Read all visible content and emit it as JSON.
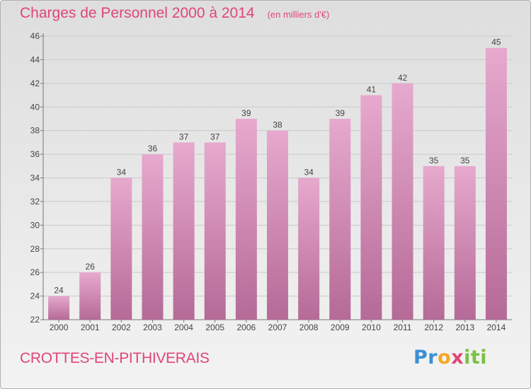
{
  "header": {
    "title": "Charges de Personnel 2000 à 2014",
    "subtitle": "(en milliers d'€)"
  },
  "footer": {
    "commune": "CROTTES-EN-PITHIVERAIS",
    "logo": {
      "letters": [
        "P",
        "r",
        "o",
        "x",
        "i",
        "t",
        "i"
      ],
      "colors": [
        "#3a8fd6",
        "#3a8fd6",
        "#f5a623",
        "#e0457a",
        "#7bc043",
        "#7bc043",
        "#7bc043"
      ]
    }
  },
  "colors": {
    "bar_top": "#e7a9ce",
    "bar_bottom": "#b56a97",
    "text": "#e0457a"
  },
  "chart_data": {
    "type": "bar",
    "categories": [
      "2000",
      "2001",
      "2002",
      "2003",
      "2004",
      "2005",
      "2006",
      "2007",
      "2008",
      "2009",
      "2010",
      "2011",
      "2012",
      "2013",
      "2014"
    ],
    "values": [
      24,
      26,
      34,
      36,
      37,
      37,
      39,
      38,
      34,
      39,
      41,
      42,
      35,
      35,
      45
    ],
    "ylim": [
      22,
      46
    ],
    "yticks": [
      22,
      24,
      26,
      28,
      30,
      32,
      34,
      36,
      38,
      40,
      42,
      44,
      46
    ],
    "grid": true
  }
}
